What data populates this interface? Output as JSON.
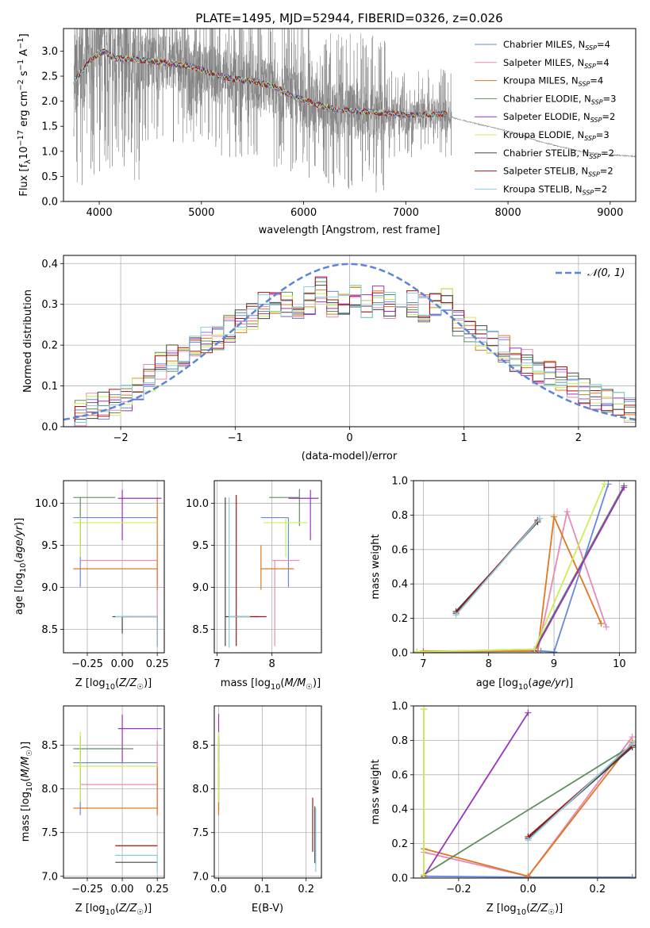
{
  "colors": [
    "#6688dd",
    "#e888b8",
    "#e07820",
    "#5f8f5f",
    "#9933bb",
    "#ccee55",
    "#444444",
    "#aa1111",
    "#88ccdd"
  ],
  "chart_data": [
    {
      "id": "spectrum",
      "type": "line",
      "title": "PLATE=1495, MJD=52944, FIBERID=0326, z=0.026",
      "xlabel": "wavelength [Angstrom, rest frame]",
      "ylabel": "Flux [f_λ 10^-17 erg cm^-2 s^-1 A^-1]",
      "xlim": [
        3650,
        9250
      ],
      "ylim": [
        0,
        3.45
      ],
      "xticks": [
        4000,
        5000,
        6000,
        7000,
        8000,
        9000
      ],
      "yticks": [
        0.0,
        0.5,
        1.0,
        1.5,
        2.0,
        2.5,
        3.0
      ],
      "legend": "top-right",
      "data_color": "#808080",
      "data_x": [
        3750,
        3800,
        3900,
        4000,
        4100,
        4200,
        4300,
        4500,
        4700,
        4900,
        5100,
        5300,
        5500,
        5700,
        5900,
        6100,
        6300,
        6500,
        6700,
        6900,
        7100,
        7300,
        7500,
        7700,
        7900,
        8100,
        8300,
        8500,
        8700,
        8900,
        9100,
        9250
      ],
      "data_y": [
        2.3,
        2.6,
        2.85,
        3.0,
        2.9,
        2.9,
        2.8,
        2.8,
        2.75,
        2.7,
        2.55,
        2.45,
        2.4,
        2.3,
        2.1,
        1.95,
        1.85,
        1.8,
        1.78,
        1.75,
        1.72,
        1.78,
        1.65,
        1.55,
        1.45,
        1.35,
        1.2,
        1.1,
        1.0,
        0.95,
        0.92,
        0.9
      ],
      "series": [
        {
          "name": "Chabrier MILES, N_SSP=4"
        },
        {
          "name": "Salpeter MILES, N_SSP=4"
        },
        {
          "name": "Kroupa MILES, N_SSP=4"
        },
        {
          "name": "Chabrier ELODIE, N_SSP=3"
        },
        {
          "name": "Salpeter ELODIE, N_SSP=2"
        },
        {
          "name": "Kroupa ELODIE, N_SSP=3"
        },
        {
          "name": "Chabrier STELIB, N_SSP=2"
        },
        {
          "name": "Salpeter STELIB, N_SSP=2"
        },
        {
          "name": "Kroupa STELIB, N_SSP=2"
        }
      ],
      "model_x": [
        3750,
        3850,
        3950,
        4050,
        4150,
        4300,
        4500,
        4700,
        4900,
        5100,
        5300,
        5500,
        5700,
        5900,
        6100,
        6300,
        6500,
        6700,
        6900,
        7100,
        7400
      ],
      "model_y": [
        2.4,
        2.65,
        2.9,
        3.0,
        2.85,
        2.85,
        2.8,
        2.75,
        2.7,
        2.55,
        2.45,
        2.4,
        2.3,
        2.1,
        1.95,
        1.85,
        1.8,
        1.78,
        1.74,
        1.72,
        1.75
      ]
    },
    {
      "id": "residuals",
      "type": "histogram",
      "xlabel": "(data-model)/error",
      "ylabel": "Normed distribution",
      "xlim": [
        -2.5,
        2.5
      ],
      "ylim": [
        0,
        0.42
      ],
      "xticks": [
        -2,
        -1,
        0,
        1,
        2
      ],
      "yticks": [
        0.0,
        0.1,
        0.2,
        0.3,
        0.4
      ],
      "gaussian_label": "𝒩(0, 1)",
      "legend": "top-right",
      "bins": [
        -2.5,
        -2.4,
        -2.3,
        -2.2,
        -2.1,
        -2.0,
        -1.9,
        -1.8,
        -1.7,
        -1.6,
        -1.5,
        -1.4,
        -1.3,
        -1.2,
        -1.1,
        -1.0,
        -0.9,
        -0.8,
        -0.7,
        -0.6,
        -0.5,
        -0.4,
        -0.3,
        -0.2,
        -0.1,
        0.0,
        0.1,
        0.2,
        0.3,
        0.4,
        0.5,
        0.6,
        0.7,
        0.8,
        0.9,
        1.0,
        1.1,
        1.2,
        1.3,
        1.4,
        1.5,
        1.6,
        1.7,
        1.8,
        1.9,
        2.0,
        2.1,
        2.2,
        2.3,
        2.4,
        2.5
      ],
      "base_values": [
        0.03,
        0.035,
        0.05,
        0.05,
        0.06,
        0.07,
        0.1,
        0.12,
        0.15,
        0.17,
        0.18,
        0.2,
        0.21,
        0.22,
        0.24,
        0.26,
        0.27,
        0.3,
        0.31,
        0.3,
        0.3,
        0.31,
        0.34,
        0.3,
        0.31,
        0.32,
        0.3,
        0.31,
        0.3,
        0.28,
        0.3,
        0.29,
        0.3,
        0.32,
        0.25,
        0.24,
        0.22,
        0.2,
        0.19,
        0.17,
        0.16,
        0.14,
        0.13,
        0.12,
        0.1,
        0.09,
        0.07,
        0.06,
        0.05,
        0.04
      ]
    },
    {
      "id": "age-vs-Z",
      "type": "scatter",
      "xlabel": "Z [log10(Z/Z☉)]",
      "ylabel": "age  [log10(age/yr)]",
      "xlim": [
        -0.42,
        0.3
      ],
      "ylim": [
        8.22,
        10.27
      ],
      "xticks": [
        -0.25,
        0.0,
        0.25
      ],
      "yticks": [
        8.5,
        9.0,
        9.5,
        10.0
      ],
      "points": [
        {
          "x": -0.3,
          "y": 9.83,
          "xlo": -0.35,
          "xhi": 0.25,
          "ylo": 9.0,
          "yhi": 9.83
        },
        {
          "x": 0.25,
          "y": 9.32,
          "xlo": -0.3,
          "xhi": 0.25,
          "ylo": 8.3,
          "yhi": 9.32
        },
        {
          "x": 0.25,
          "y": 9.22,
          "xlo": -0.35,
          "xhi": 0.25,
          "ylo": 8.97,
          "yhi": 10.07
        },
        {
          "x": -0.3,
          "y": 10.07,
          "xlo": -0.35,
          "xhi": -0.05,
          "ylo": 9.5,
          "yhi": 10.07
        },
        {
          "x": 0.0,
          "y": 10.06,
          "xlo": -0.03,
          "xhi": 0.28,
          "ylo": 9.56,
          "yhi": 10.16
        },
        {
          "x": -0.3,
          "y": 9.77,
          "xlo": -0.35,
          "xhi": 0.25,
          "ylo": 9.36,
          "yhi": 9.83
        },
        {
          "x": 0.0,
          "y": 8.65,
          "xlo": -0.07,
          "xhi": 0.25,
          "ylo": 8.45,
          "yhi": 8.65
        },
        {
          "x": 0.25,
          "y": 8.65,
          "xlo": 0.0,
          "xhi": 0.25,
          "ylo": 8.3,
          "yhi": 8.65
        },
        {
          "x": 0.25,
          "y": 8.65,
          "xlo": -0.05,
          "xhi": 0.25,
          "ylo": 8.28,
          "yhi": 8.65
        }
      ]
    },
    {
      "id": "age-vs-mass",
      "type": "scatter",
      "xlabel": "mass [log10(M/M☉)]",
      "ylabel": "",
      "xlim": [
        6.95,
        8.9
      ],
      "ylim": [
        8.22,
        10.27
      ],
      "xticks": [
        7,
        8
      ],
      "yticks": [
        8.5,
        9.0,
        9.5,
        10.0
      ],
      "points": [
        {
          "x": 8.3,
          "y": 9.83,
          "xlo": 7.8,
          "xhi": 8.3,
          "ylo": 9.0,
          "yhi": 9.83
        },
        {
          "x": 8.05,
          "y": 9.32,
          "xlo": 8.0,
          "xhi": 8.5,
          "ylo": 8.3,
          "yhi": 9.32
        },
        {
          "x": 7.8,
          "y": 9.22,
          "xlo": 7.8,
          "xhi": 8.4,
          "ylo": 8.97,
          "yhi": 9.5
        },
        {
          "x": 8.5,
          "y": 10.07,
          "xlo": 7.95,
          "xhi": 8.5,
          "ylo": 9.73,
          "yhi": 10.17
        },
        {
          "x": 8.7,
          "y": 10.06,
          "xlo": 8.3,
          "xhi": 8.85,
          "ylo": 9.56,
          "yhi": 10.16
        },
        {
          "x": 8.25,
          "y": 9.77,
          "xlo": 7.85,
          "xhi": 8.65,
          "ylo": 9.36,
          "yhi": 9.83
        },
        {
          "x": 7.15,
          "y": 8.65,
          "xlo": 7.15,
          "xhi": 7.75,
          "ylo": 8.3,
          "yhi": 10.07
        },
        {
          "x": 7.35,
          "y": 8.65,
          "xlo": 7.3,
          "xhi": 7.9,
          "ylo": 8.3,
          "yhi": 10.1
        },
        {
          "x": 7.22,
          "y": 8.65,
          "xlo": 7.22,
          "xhi": 7.6,
          "ylo": 8.28,
          "yhi": 10.07
        }
      ]
    },
    {
      "id": "weight-vs-age",
      "type": "line",
      "xlabel": "age  [log10(age/yr)]",
      "ylabel": "mass weight",
      "xlim": [
        6.85,
        10.25
      ],
      "ylim": [
        0,
        1.0
      ],
      "xticks": [
        7,
        8,
        9,
        10
      ],
      "yticks": [
        0.0,
        0.2,
        0.4,
        0.6,
        0.8,
        1.0
      ],
      "series": [
        {
          "x": [
            6.9,
            8.8,
            9.0,
            9.83
          ],
          "y": [
            0.005,
            0.01,
            0.005,
            0.98
          ]
        },
        {
          "x": [
            7.0,
            8.75,
            9.2,
            9.8
          ],
          "y": [
            0.005,
            0.01,
            0.82,
            0.15
          ]
        },
        {
          "x": [
            7.0,
            8.75,
            9.0,
            9.72
          ],
          "y": [
            0.01,
            0.01,
            0.79,
            0.17
          ]
        },
        {
          "x": [
            6.9,
            8.7,
            10.07
          ],
          "y": [
            0.005,
            0.02,
            0.97
          ]
        },
        {
          "x": [
            8.7,
            10.07
          ],
          "y": [
            0.01,
            0.96
          ]
        },
        {
          "x": [
            6.9,
            8.7,
            9.77
          ],
          "y": [
            0.005,
            0.02,
            0.98
          ]
        },
        {
          "x": [
            7.5,
            8.75
          ],
          "y": [
            0.24,
            0.76
          ]
        },
        {
          "x": [
            7.5,
            8.75
          ],
          "y": [
            0.23,
            0.77
          ]
        },
        {
          "x": [
            7.5,
            8.78
          ],
          "y": [
            0.22,
            0.78
          ]
        }
      ]
    },
    {
      "id": "mass-vs-Z",
      "type": "scatter",
      "xlabel": "Z [log10(Z/Z☉)]",
      "ylabel": "mass [log10(M/M☉)]",
      "xlim": [
        -0.42,
        0.3
      ],
      "ylim": [
        6.98,
        8.95
      ],
      "xticks": [
        -0.25,
        0.0,
        0.25
      ],
      "yticks": [
        7.0,
        7.5,
        8.0,
        8.5
      ],
      "points": [
        {
          "x": -0.3,
          "y": 8.3,
          "xlo": -0.35,
          "xhi": 0.25,
          "ylo": 7.7,
          "yhi": 8.6
        },
        {
          "x": 0.25,
          "y": 8.05,
          "xlo": -0.3,
          "xhi": 0.25,
          "ylo": 7.7,
          "yhi": 8.55
        },
        {
          "x": 0.25,
          "y": 7.78,
          "xlo": -0.35,
          "xhi": 0.25,
          "ylo": 7.7,
          "yhi": 8.25
        },
        {
          "x": -0.3,
          "y": 8.46,
          "xlo": -0.35,
          "xhi": 0.08,
          "ylo": 8.0,
          "yhi": 8.6
        },
        {
          "x": 0.0,
          "y": 8.69,
          "xlo": -0.03,
          "xhi": 0.28,
          "ylo": 8.3,
          "yhi": 8.85
        },
        {
          "x": -0.3,
          "y": 8.26,
          "xlo": -0.35,
          "xhi": 0.25,
          "ylo": 7.85,
          "yhi": 8.65
        },
        {
          "x": 0.0,
          "y": 7.16,
          "xlo": -0.05,
          "xhi": 0.25,
          "ylo": 7.16,
          "yhi": 7.16
        },
        {
          "x": 0.25,
          "y": 7.35,
          "xlo": -0.05,
          "xhi": 0.25,
          "ylo": 7.35,
          "yhi": 7.35
        },
        {
          "x": 0.25,
          "y": 7.24,
          "xlo": -0.05,
          "xhi": 0.25,
          "ylo": 7.05,
          "yhi": 7.24
        }
      ]
    },
    {
      "id": "mass-vs-ebv",
      "type": "scatter",
      "xlabel": "E(B-V)",
      "ylabel": "",
      "xlim": [
        -0.01,
        0.235
      ],
      "ylim": [
        6.98,
        8.95
      ],
      "xticks": [
        0.0,
        0.1,
        0.2
      ],
      "yticks": [
        7.0,
        7.5,
        8.0,
        8.5
      ],
      "points": [
        {
          "x": 0.0,
          "y": 8.3,
          "xlo": 0.0,
          "xhi": 0.0,
          "ylo": 7.75,
          "yhi": 8.6
        },
        {
          "x": 0.0,
          "y": 8.05,
          "xlo": 0.0,
          "xhi": 0.0,
          "ylo": 7.75,
          "yhi": 8.55
        },
        {
          "x": 0.0,
          "y": 7.78,
          "xlo": 0.0,
          "xhi": 0.0,
          "ylo": 7.7,
          "yhi": 8.25
        },
        {
          "x": 0.0,
          "y": 8.46,
          "xlo": 0.0,
          "xhi": 0.0,
          "ylo": 8.0,
          "yhi": 8.6
        },
        {
          "x": 0.0,
          "y": 8.69,
          "xlo": 0.0,
          "xhi": 0.0,
          "ylo": 8.3,
          "yhi": 8.86
        },
        {
          "x": 0.0,
          "y": 8.26,
          "xlo": 0.0,
          "xhi": 0.0,
          "ylo": 7.85,
          "yhi": 8.65
        },
        {
          "x": 0.22,
          "y": 7.5,
          "xlo": 0.22,
          "xhi": 0.22,
          "ylo": 7.15,
          "yhi": 7.8
        },
        {
          "x": 0.215,
          "y": 7.6,
          "xlo": 0.215,
          "xhi": 0.215,
          "ylo": 7.28,
          "yhi": 7.9
        },
        {
          "x": 0.222,
          "y": 7.45,
          "xlo": 0.222,
          "xhi": 0.222,
          "ylo": 7.05,
          "yhi": 7.78
        }
      ]
    },
    {
      "id": "weight-vs-Z",
      "type": "line",
      "xlabel": "Z [log10(Z/Z☉)]",
      "ylabel": "mass weight",
      "xlim": [
        -0.33,
        0.31
      ],
      "ylim": [
        0,
        1.0
      ],
      "xticks": [
        -0.2,
        0.0,
        0.2
      ],
      "yticks": [
        0.0,
        0.2,
        0.4,
        0.6,
        0.8,
        1.0
      ],
      "series": [
        {
          "x": [
            -0.3,
            0.0,
            0.3
          ],
          "y": [
            0.01,
            0.005,
            0.005
          ]
        },
        {
          "x": [
            -0.3,
            0.0,
            0.3
          ],
          "y": [
            0.15,
            0.01,
            0.82
          ]
        },
        {
          "x": [
            -0.3,
            0.0,
            0.3
          ],
          "y": [
            0.17,
            0.01,
            0.79
          ]
        },
        {
          "x": [
            -0.3,
            -0.3,
            0.3
          ],
          "y": [
            0.98,
            0.02,
            0.77
          ]
        },
        {
          "x": [
            -0.3,
            0.0
          ],
          "y": [
            0.01,
            0.96
          ]
        },
        {
          "x": [
            -0.3,
            -0.3,
            -0.3
          ],
          "y": [
            0.98,
            0.02,
            0.005
          ]
        },
        {
          "x": [
            0.0,
            0.3
          ],
          "y": [
            0.23,
            0.76
          ]
        },
        {
          "x": [
            0.0,
            0.3
          ],
          "y": [
            0.24,
            0.77
          ]
        },
        {
          "x": [
            0.0,
            0.3
          ],
          "y": [
            0.22,
            0.78
          ]
        }
      ]
    }
  ]
}
